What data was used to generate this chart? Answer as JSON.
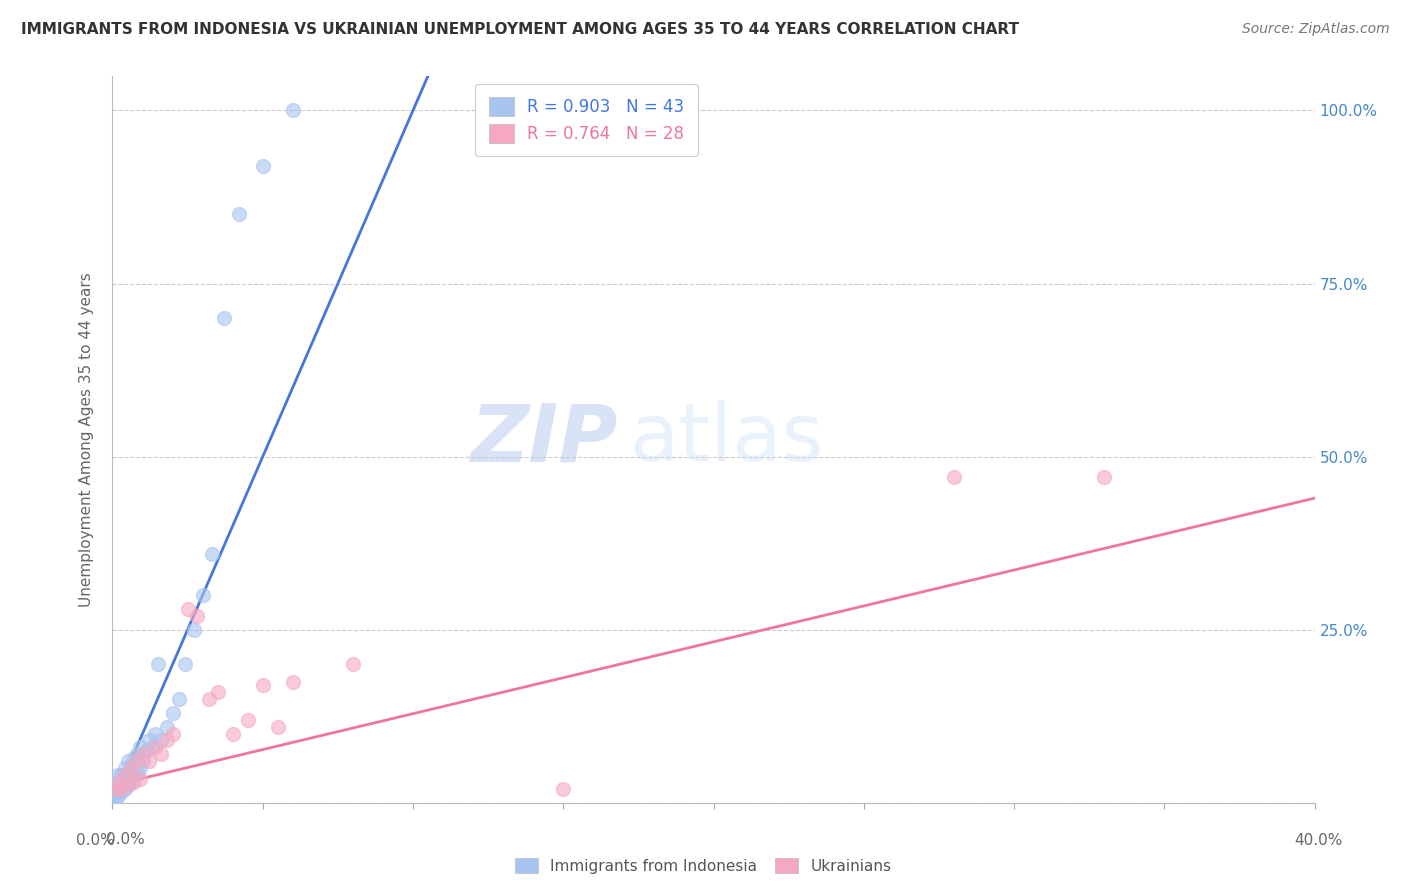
{
  "title": "IMMIGRANTS FROM INDONESIA VS UKRAINIAN UNEMPLOYMENT AMONG AGES 35 TO 44 YEARS CORRELATION CHART",
  "source": "Source: ZipAtlas.com",
  "ylabel": "Unemployment Among Ages 35 to 44 years",
  "xlim": [
    0.0,
    0.4
  ],
  "ylim": [
    0.0,
    1.05
  ],
  "ytick_positions": [
    0.0,
    0.25,
    0.5,
    0.75,
    1.0
  ],
  "right_ytick_labels": [
    "",
    "25.0%",
    "50.0%",
    "75.0%",
    "100.0%"
  ],
  "legend1_r": "0.903",
  "legend1_n": "43",
  "legend2_r": "0.764",
  "legend2_n": "28",
  "blue_color": "#a8c4f0",
  "pink_color": "#f5a8bf",
  "blue_line_color": "#4477dd",
  "pink_line_color": "#ee7799",
  "watermark_zip": "ZIP",
  "watermark_atlas": "atlas",
  "blue_scatter_x": [
    0.001,
    0.001,
    0.001,
    0.001,
    0.002,
    0.002,
    0.002,
    0.002,
    0.003,
    0.003,
    0.003,
    0.004,
    0.004,
    0.004,
    0.005,
    0.005,
    0.005,
    0.006,
    0.006,
    0.007,
    0.007,
    0.008,
    0.008,
    0.009,
    0.009,
    0.01,
    0.011,
    0.012,
    0.013,
    0.014,
    0.015,
    0.016,
    0.018,
    0.02,
    0.022,
    0.024,
    0.027,
    0.03,
    0.033,
    0.037,
    0.042,
    0.05,
    0.06
  ],
  "blue_scatter_y": [
    0.005,
    0.01,
    0.015,
    0.02,
    0.01,
    0.02,
    0.03,
    0.04,
    0.015,
    0.025,
    0.04,
    0.02,
    0.035,
    0.05,
    0.025,
    0.04,
    0.06,
    0.03,
    0.055,
    0.04,
    0.065,
    0.045,
    0.07,
    0.05,
    0.08,
    0.06,
    0.075,
    0.09,
    0.08,
    0.1,
    0.2,
    0.09,
    0.11,
    0.13,
    0.15,
    0.2,
    0.25,
    0.3,
    0.36,
    0.7,
    0.85,
    0.92,
    1.0
  ],
  "pink_scatter_x": [
    0.001,
    0.002,
    0.003,
    0.004,
    0.005,
    0.006,
    0.007,
    0.008,
    0.009,
    0.01,
    0.012,
    0.014,
    0.016,
    0.018,
    0.02,
    0.025,
    0.028,
    0.032,
    0.035,
    0.04,
    0.045,
    0.05,
    0.055,
    0.06,
    0.08,
    0.15,
    0.28,
    0.33
  ],
  "pink_scatter_y": [
    0.02,
    0.03,
    0.02,
    0.04,
    0.025,
    0.05,
    0.03,
    0.06,
    0.035,
    0.07,
    0.06,
    0.08,
    0.07,
    0.09,
    0.1,
    0.28,
    0.27,
    0.15,
    0.16,
    0.1,
    0.12,
    0.17,
    0.11,
    0.175,
    0.2,
    0.02,
    0.47,
    0.47
  ],
  "blue_line_x": [
    0.0,
    0.105
  ],
  "blue_line_y": [
    0.0,
    1.05
  ],
  "pink_line_x": [
    0.0,
    0.4
  ],
  "pink_line_y": [
    0.025,
    0.44
  ]
}
